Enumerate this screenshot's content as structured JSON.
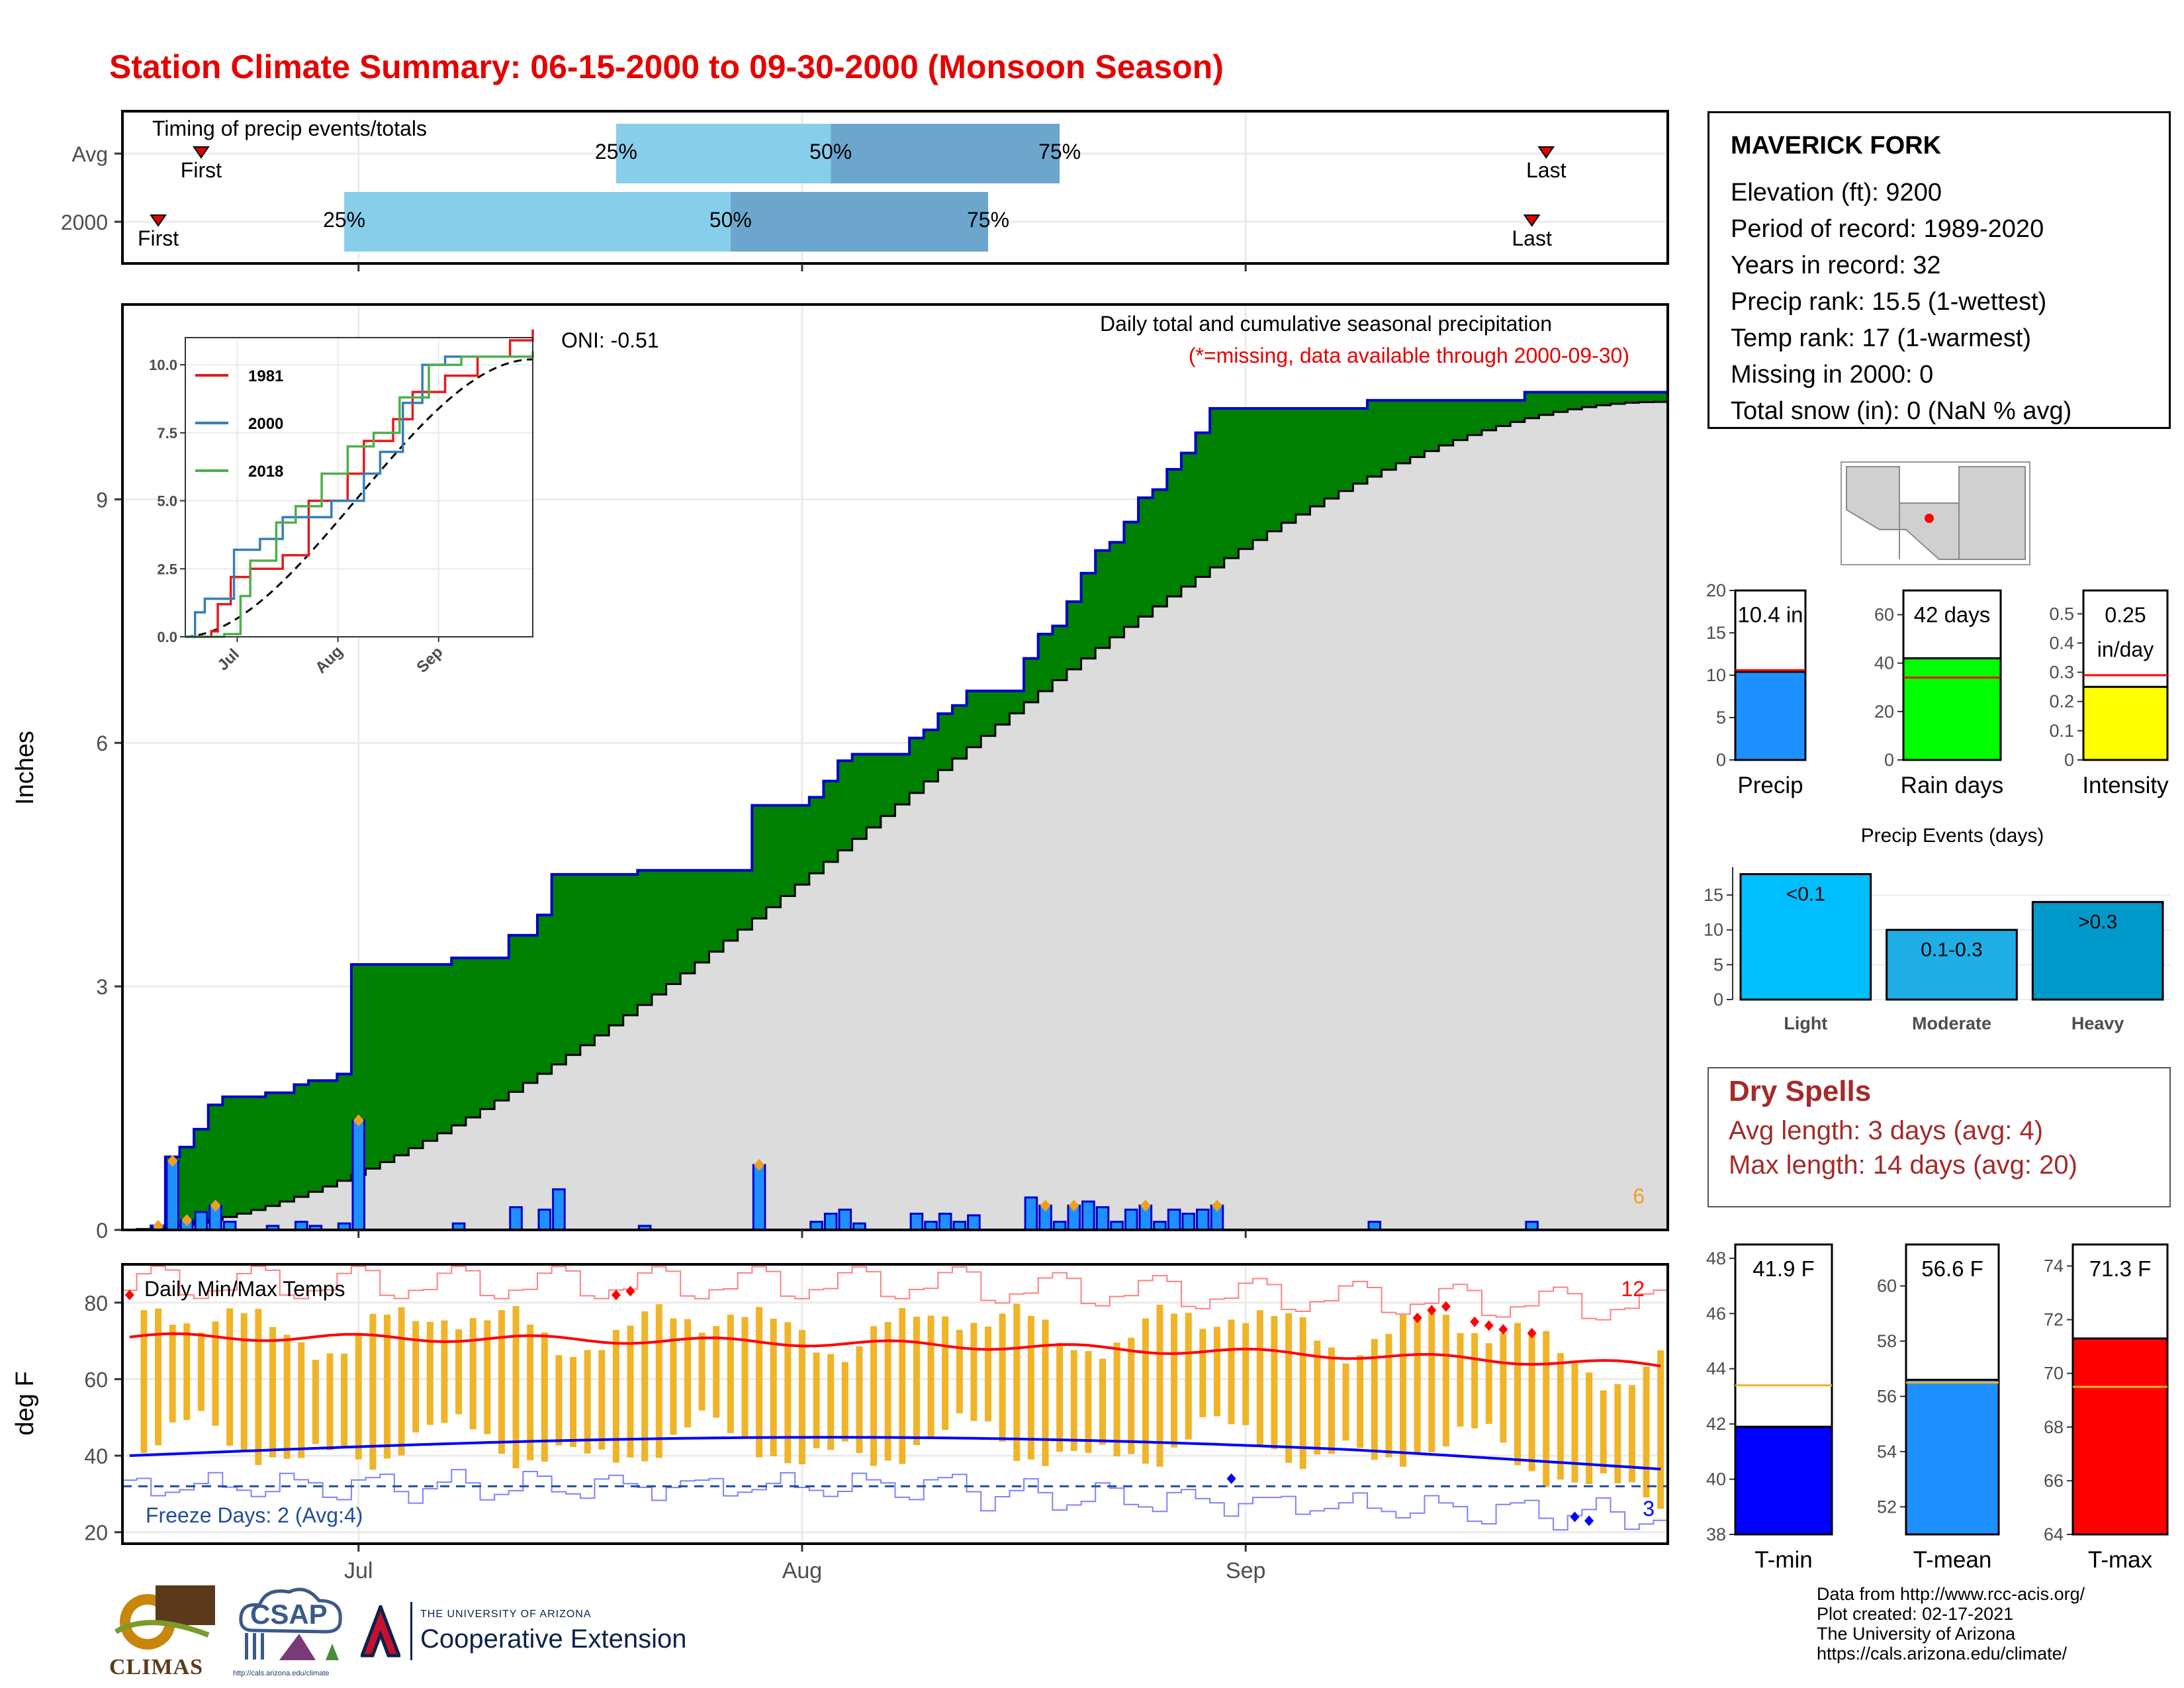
{
  "title": "Station Climate Summary: 06-15-2000 to 09-30-2000 (Monsoon Season)",
  "station": {
    "name": "MAVERICK FORK",
    "details": [
      "Elevation (ft): 9200",
      "Period of record: 1989-2020",
      "Years in record: 32",
      "Precip rank: 15.5 (1-wettest)",
      "Temp rank: 17 (1-warmest)",
      "Missing in 2000: 0",
      "Total snow (in): 0 (NaN % avg)"
    ]
  },
  "dry_spells": {
    "heading": "Dry Spells",
    "avg_length": "Avg length: 3 days (avg: 4)",
    "max_length": "Max length: 14 days (avg: 20)"
  },
  "credits": [
    "Data from http://www.rcc-acis.org/",
    "Plot created: 02-17-2021",
    "The University of Arizona",
    "https://cals.arizona.edu/climate/"
  ],
  "logos": {
    "climas": "CLIMAS",
    "csap": "CSAP",
    "csap_url": "http://cals.arizona.edu/climate",
    "ua_line1": "THE UNIVERSITY OF ARIZONA",
    "ua_line2": "Cooperative Extension"
  },
  "colors": {
    "title": "#e60000",
    "cumulative_fill": "#008000",
    "normal_fill": "#dcdcdc",
    "daily_bar": "#1e90ff",
    "tmax": "#ff0000",
    "tmin": "#0000ff",
    "temp_range": "#f0b429"
  },
  "chart_data": [
    {
      "type": "timeline",
      "title": "Timing of precip events/totals",
      "month_ticks": [
        "Jul",
        "Aug",
        "Sep"
      ],
      "rows": [
        {
          "label": "Avg",
          "first": "2000-06-20",
          "last": "2000-09-22",
          "p25": "2000-07-19",
          "p50": "2000-08-03",
          "p75": "2000-08-19"
        },
        {
          "label": "2000",
          "first": "2000-06-17",
          "last": "2000-09-21",
          "p25": "2000-06-30",
          "p50": "2000-07-27",
          "p75": "2000-08-14"
        }
      ],
      "labels": {
        "first": "First",
        "last": "Last",
        "p25": "25%",
        "p50": "50%",
        "p75": "75%"
      }
    },
    {
      "type": "area",
      "title": "Daily total and cumulative seasonal precipitation",
      "subtitle": "(*=missing, data available through 2000-09-30)",
      "annotation": "ONI: -0.51",
      "corner_count": "6",
      "ylabel": "Inches",
      "ylim": [
        0,
        11.4
      ],
      "yticks": [
        0,
        3,
        6,
        9
      ],
      "x_ticks": [
        "Jul",
        "Aug",
        "Sep"
      ],
      "daily_precip": [
        {
          "date": "2000-06-17",
          "v": 0.05
        },
        {
          "date": "2000-06-18",
          "v": 0.85
        },
        {
          "date": "2000-06-19",
          "v": 0.12
        },
        {
          "date": "2000-06-20",
          "v": 0.22
        },
        {
          "date": "2000-06-21",
          "v": 0.3
        },
        {
          "date": "2000-06-22",
          "v": 0.1
        },
        {
          "date": "2000-06-25",
          "v": 0.05
        },
        {
          "date": "2000-06-27",
          "v": 0.1
        },
        {
          "date": "2000-06-28",
          "v": 0.05
        },
        {
          "date": "2000-06-30",
          "v": 0.08
        },
        {
          "date": "2000-07-01",
          "v": 1.35
        },
        {
          "date": "2000-07-08",
          "v": 0.08
        },
        {
          "date": "2000-07-12",
          "v": 0.28
        },
        {
          "date": "2000-07-14",
          "v": 0.25
        },
        {
          "date": "2000-07-15",
          "v": 0.5
        },
        {
          "date": "2000-07-21",
          "v": 0.05
        },
        {
          "date": "2000-07-29",
          "v": 0.8
        },
        {
          "date": "2000-08-02",
          "v": 0.1
        },
        {
          "date": "2000-08-03",
          "v": 0.2
        },
        {
          "date": "2000-08-04",
          "v": 0.25
        },
        {
          "date": "2000-08-05",
          "v": 0.08
        },
        {
          "date": "2000-08-09",
          "v": 0.2
        },
        {
          "date": "2000-08-10",
          "v": 0.1
        },
        {
          "date": "2000-08-11",
          "v": 0.2
        },
        {
          "date": "2000-08-12",
          "v": 0.1
        },
        {
          "date": "2000-08-13",
          "v": 0.18
        },
        {
          "date": "2000-08-17",
          "v": 0.4
        },
        {
          "date": "2000-08-18",
          "v": 0.3
        },
        {
          "date": "2000-08-19",
          "v": 0.1
        },
        {
          "date": "2000-08-20",
          "v": 0.3
        },
        {
          "date": "2000-08-21",
          "v": 0.35
        },
        {
          "date": "2000-08-22",
          "v": 0.28
        },
        {
          "date": "2000-08-23",
          "v": 0.1
        },
        {
          "date": "2000-08-24",
          "v": 0.25
        },
        {
          "date": "2000-08-25",
          "v": 0.3
        },
        {
          "date": "2000-08-26",
          "v": 0.1
        },
        {
          "date": "2000-08-27",
          "v": 0.25
        },
        {
          "date": "2000-08-28",
          "v": 0.2
        },
        {
          "date": "2000-08-29",
          "v": 0.25
        },
        {
          "date": "2000-08-30",
          "v": 0.3
        },
        {
          "date": "2000-09-10",
          "v": 0.1
        },
        {
          "date": "2000-09-21",
          "v": 0.1
        }
      ],
      "normal_end": 10.2,
      "inset": {
        "type": "line",
        "x_ticks": [
          "Jul",
          "Aug",
          "Sep"
        ],
        "yticks": [
          0.0,
          2.5,
          5.0,
          7.5,
          10.0
        ],
        "ylim": [
          0,
          11
        ],
        "series": [
          {
            "name": "1981",
            "color": "#e41a1c",
            "points": [
              [
                0,
                0
              ],
              [
                8,
                0.2
              ],
              [
                10,
                1.2
              ],
              [
                14,
                2.2
              ],
              [
                20,
                2.5
              ],
              [
                30,
                3.0
              ],
              [
                38,
                5.0
              ],
              [
                50,
                6.0
              ],
              [
                55,
                7.2
              ],
              [
                64,
                8.0
              ],
              [
                70,
                9.0
              ],
              [
                80,
                9.6
              ],
              [
                90,
                10.3
              ],
              [
                100,
                10.9
              ],
              [
                107,
                11.3
              ]
            ]
          },
          {
            "name": "2000",
            "color": "#377eb8",
            "points": [
              [
                0,
                0
              ],
              [
                3,
                0.9
              ],
              [
                6,
                1.4
              ],
              [
                15,
                3.2
              ],
              [
                16,
                3.2
              ],
              [
                23,
                3.6
              ],
              [
                30,
                4.4
              ],
              [
                45,
                5.0
              ],
              [
                55,
                6.0
              ],
              [
                60,
                6.8
              ],
              [
                67,
                8.6
              ],
              [
                73,
                10.0
              ],
              [
                80,
                10.3
              ],
              [
                107,
                10.4
              ]
            ]
          },
          {
            "name": "2018",
            "color": "#4daf4a",
            "points": [
              [
                0,
                0
              ],
              [
                12,
                0.1
              ],
              [
                17,
                1.5
              ],
              [
                20,
                2.8
              ],
              [
                28,
                4.2
              ],
              [
                34,
                4.8
              ],
              [
                42,
                6.0
              ],
              [
                50,
                7.0
              ],
              [
                58,
                7.5
              ],
              [
                66,
                8.8
              ],
              [
                75,
                10.0
              ],
              [
                85,
                10.3
              ],
              [
                107,
                10.5
              ]
            ]
          }
        ]
      }
    },
    {
      "type": "line",
      "title": "Daily Min/Max Temps",
      "ylabel": "deg F",
      "ylim": [
        17,
        90
      ],
      "yticks": [
        20,
        40,
        60,
        80
      ],
      "x_ticks": [
        "Jul",
        "Aug",
        "Sep"
      ],
      "annotation_freeze": "Freeze Days: 2 (Avg:4)",
      "count_tmax": "12",
      "count_tmin": "3",
      "tmax_normal_start": 71.0,
      "tmax_normal_end": 63.5,
      "tmin_normal_start": 40.0,
      "tmin_normal_end": 37.5,
      "freeze_line": 32
    },
    {
      "type": "bar",
      "title": "Precip",
      "label": "10.4 in",
      "value": 10.4,
      "avg": 10.6,
      "ylim": [
        0,
        20
      ],
      "yticks": [
        0,
        5,
        10,
        15,
        20
      ],
      "color": "#1e90ff"
    },
    {
      "type": "bar",
      "title": "Rain days",
      "label": "42 days",
      "value": 42,
      "avg": 34,
      "ylim": [
        0,
        70
      ],
      "yticks": [
        0,
        20,
        40,
        60
      ],
      "color": "#00ff00"
    },
    {
      "type": "bar",
      "title": "Intensity",
      "label": "0.25 in/day",
      "value": 0.25,
      "avg": 0.29,
      "ylim": [
        0,
        0.58
      ],
      "yticks": [
        0.0,
        0.1,
        0.2,
        0.3,
        0.4,
        0.5
      ],
      "color": "#ffff00"
    },
    {
      "type": "bar",
      "title": "Precip Events (days)",
      "categories": [
        "Light",
        "Moderate",
        "Heavy"
      ],
      "bar_labels": [
        "<0.1",
        "0.1-0.3",
        ">0.3"
      ],
      "values": [
        18,
        10,
        14
      ],
      "ylim": [
        0,
        19
      ],
      "yticks": [
        0,
        5,
        10,
        15
      ],
      "colors": [
        "#00bfff",
        "#1faee6",
        "#0099cc"
      ]
    },
    {
      "type": "bar",
      "title": "T-min",
      "label": "41.9 F",
      "value": 41.9,
      "avg": 43.4,
      "ylim": [
        38,
        48.5
      ],
      "yticks": [
        38,
        40,
        42,
        44,
        46,
        48
      ],
      "color": "#0000ff"
    },
    {
      "type": "bar",
      "title": "T-mean",
      "label": "56.6 F",
      "value": 56.6,
      "avg": 56.5,
      "ylim": [
        51,
        61.5
      ],
      "yticks": [
        52,
        54,
        56,
        58,
        60
      ],
      "color": "#1e90ff"
    },
    {
      "type": "bar",
      "title": "T-max",
      "label": "71.3 F",
      "value": 71.3,
      "avg": 69.5,
      "ylim": [
        64,
        74.8
      ],
      "yticks": [
        64,
        66,
        68,
        70,
        72,
        74
      ],
      "color": "#ff0000"
    }
  ]
}
